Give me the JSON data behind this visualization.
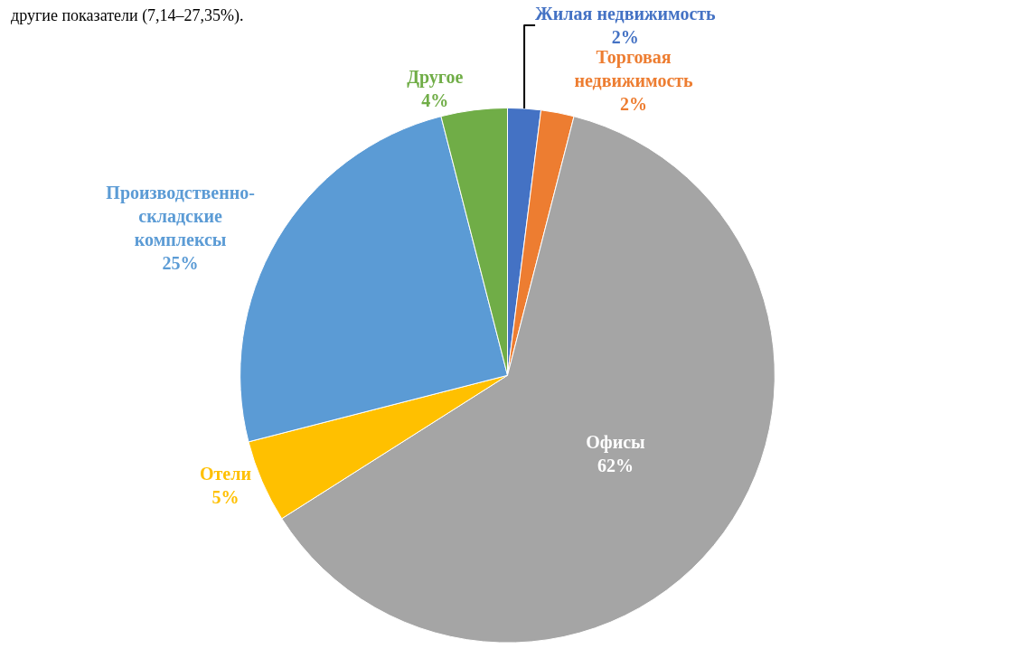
{
  "chart_data": {
    "type": "pie",
    "categories": [
      "Жилая недвижимость",
      "Торговая недвижимость",
      "Офисы",
      "Отели",
      "Производственно-складские комплексы",
      "Другое"
    ],
    "values": [
      2,
      2,
      62,
      5,
      25,
      4
    ],
    "value_labels": [
      "2%",
      "2%",
      "62%",
      "5%",
      "25%",
      "4%"
    ],
    "colors": [
      "#4472c4",
      "#ed7d31",
      "#a5a5a5",
      "#ffc000",
      "#5b9bd5",
      "#70ad47"
    ],
    "legend": false,
    "annotations": [
      "другие показатели (7,14–27,35%)."
    ]
  }
}
